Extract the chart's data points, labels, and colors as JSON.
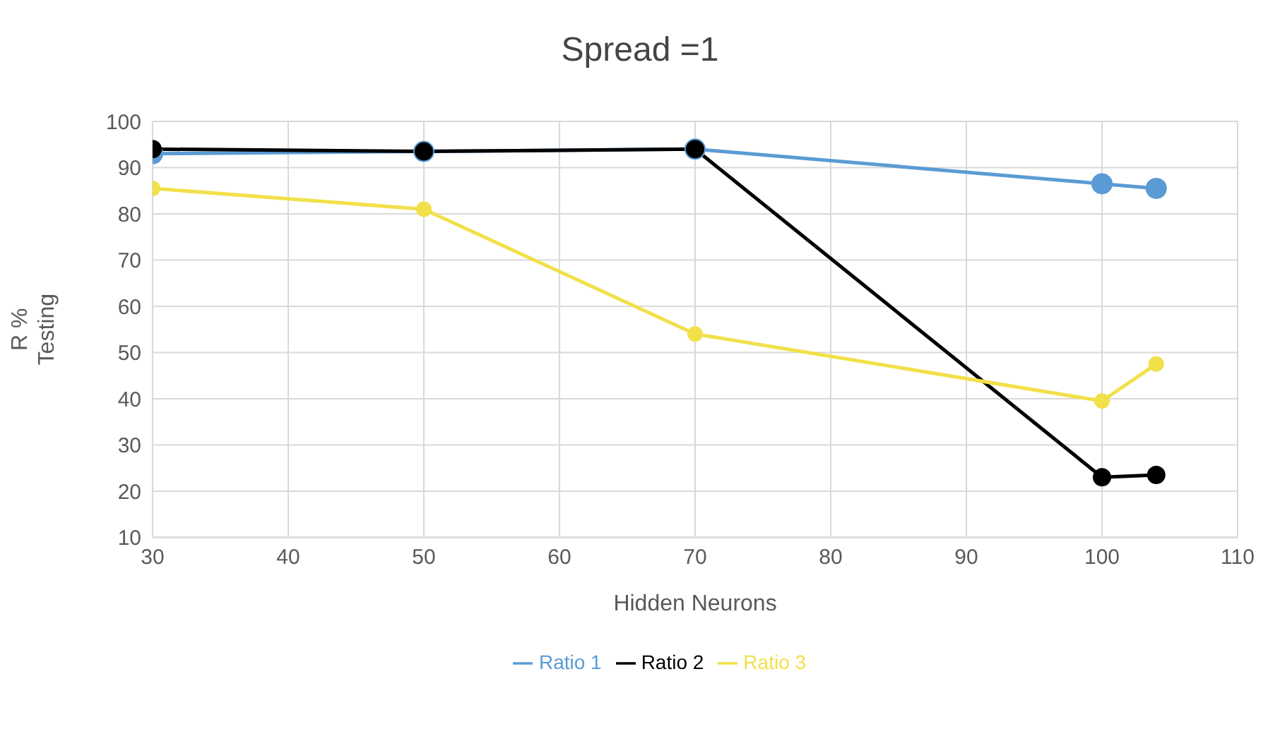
{
  "chart_data": {
    "type": "line",
    "title": "Spread =1",
    "xlabel": "Hidden Neurons",
    "ylabel": "R %\nTesting",
    "x": [
      30,
      50,
      70,
      100,
      104
    ],
    "series": [
      {
        "name": "Ratio 1",
        "color": "#5b9bd5",
        "values": [
          93,
          93.5,
          94,
          86.5,
          85.5
        ]
      },
      {
        "name": "Ratio 2",
        "color": "#000000",
        "values": [
          94,
          93.5,
          94,
          23,
          23.5
        ]
      },
      {
        "name": "Ratio 3",
        "color": "#f2e04a",
        "values": [
          85.5,
          81,
          54,
          39.5,
          47.5
        ]
      }
    ],
    "xlim": [
      30,
      110
    ],
    "xticks": [
      30,
      40,
      50,
      60,
      70,
      80,
      90,
      100,
      110
    ],
    "ylim": [
      10,
      100
    ],
    "yticks": [
      10,
      20,
      30,
      40,
      50,
      60,
      70,
      80,
      90,
      100
    ],
    "grid": true,
    "legend": "bottom",
    "marker": "circle",
    "line_style": "solid"
  }
}
